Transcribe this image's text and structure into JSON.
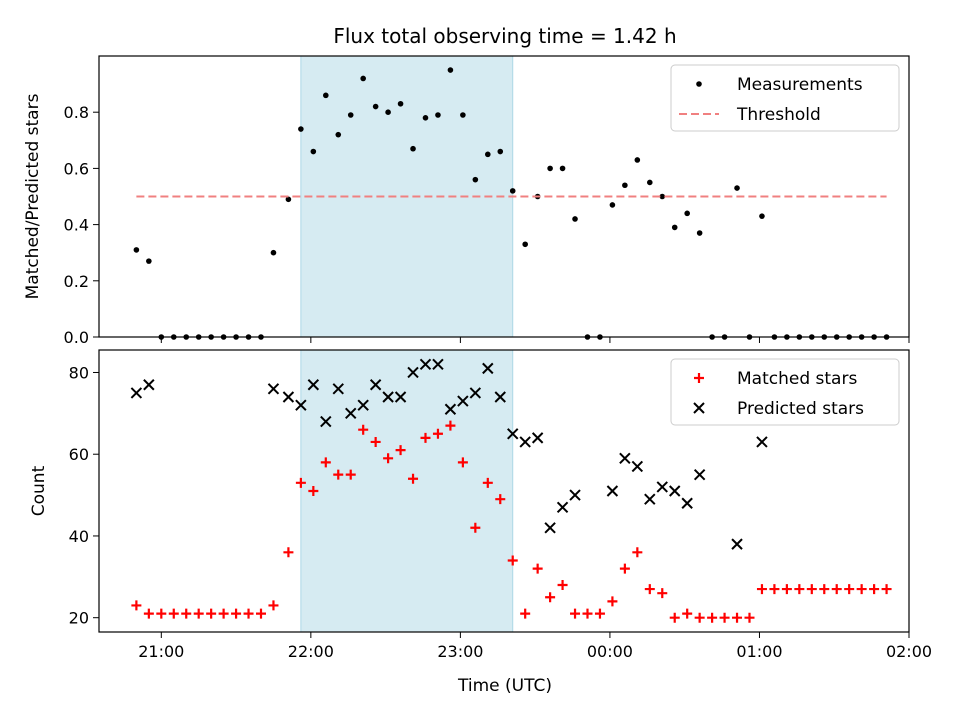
{
  "figure": {
    "title": "Flux total observing time = 1.42 h",
    "xlabel": "Time (UTC)",
    "x_ticks": [
      "21:00",
      "22:00",
      "23:00",
      "00:00",
      "01:00",
      "02:00"
    ]
  },
  "chart_data": [
    {
      "type": "scatter",
      "ylabel": "Matched/Predicted stars",
      "xlim": [
        "20:35",
        "02:00"
      ],
      "ylim": [
        0,
        1.0
      ],
      "y_ticks": [
        "0.0",
        "0.2",
        "0.4",
        "0.6",
        "0.8"
      ],
      "shaded_interval": [
        "21:56",
        "23:21"
      ],
      "legend_position": "upper-right",
      "series": [
        {
          "name": "Measurements",
          "marker": "dot",
          "color": "#000000",
          "points": [
            [
              "20:50",
              0.31
            ],
            [
              "20:55",
              0.27
            ],
            [
              "21:00",
              0.0
            ],
            [
              "21:05",
              0.0
            ],
            [
              "21:10",
              0.0
            ],
            [
              "21:15",
              0.0
            ],
            [
              "21:20",
              0.0
            ],
            [
              "21:25",
              0.0
            ],
            [
              "21:30",
              0.0
            ],
            [
              "21:35",
              0.0
            ],
            [
              "21:40",
              0.0
            ],
            [
              "21:45",
              0.3
            ],
            [
              "21:51",
              0.49
            ],
            [
              "21:56",
              0.74
            ],
            [
              "22:01",
              0.66
            ],
            [
              "22:06",
              0.86
            ],
            [
              "22:11",
              0.72
            ],
            [
              "22:16",
              0.79
            ],
            [
              "22:21",
              0.92
            ],
            [
              "22:26",
              0.82
            ],
            [
              "22:31",
              0.8
            ],
            [
              "22:36",
              0.83
            ],
            [
              "22:41",
              0.67
            ],
            [
              "22:46",
              0.78
            ],
            [
              "22:51",
              0.79
            ],
            [
              "22:56",
              0.95
            ],
            [
              "23:01",
              0.79
            ],
            [
              "23:06",
              0.56
            ],
            [
              "23:11",
              0.65
            ],
            [
              "23:16",
              0.66
            ],
            [
              "23:21",
              0.52
            ],
            [
              "23:26",
              0.33
            ],
            [
              "23:31",
              0.5
            ],
            [
              "23:36",
              0.6
            ],
            [
              "23:41",
              0.6
            ],
            [
              "23:46",
              0.42
            ],
            [
              "23:51",
              0.0
            ],
            [
              "23:56",
              0.0
            ],
            [
              "00:01",
              0.47
            ],
            [
              "00:06",
              0.54
            ],
            [
              "00:11",
              0.63
            ],
            [
              "00:16",
              0.55
            ],
            [
              "00:21",
              0.5
            ],
            [
              "00:26",
              0.39
            ],
            [
              "00:31",
              0.44
            ],
            [
              "00:36",
              0.37
            ],
            [
              "00:41",
              0.0
            ],
            [
              "00:46",
              0.0
            ],
            [
              "00:51",
              0.53
            ],
            [
              "00:56",
              0.0
            ],
            [
              "01:01",
              0.43
            ],
            [
              "01:06",
              0.0
            ],
            [
              "01:11",
              0.0
            ],
            [
              "01:16",
              0.0
            ],
            [
              "01:21",
              0.0
            ],
            [
              "01:26",
              0.0
            ],
            [
              "01:31",
              0.0
            ],
            [
              "01:36",
              0.0
            ],
            [
              "01:41",
              0.0
            ],
            [
              "01:46",
              0.0
            ],
            [
              "01:51",
              0.0
            ]
          ]
        },
        {
          "name": "Threshold",
          "style": "dashed",
          "color": "#f08080",
          "points": [
            [
              "20:50",
              0.5
            ],
            [
              "01:51",
              0.5
            ]
          ]
        }
      ]
    },
    {
      "type": "scatter",
      "ylabel": "Count",
      "xlim": [
        "20:35",
        "02:00"
      ],
      "ylim": [
        16.5,
        85.5
      ],
      "y_ticks": [
        "20",
        "40",
        "60",
        "80"
      ],
      "shaded_interval": [
        "21:56",
        "23:21"
      ],
      "legend_position": "upper-right",
      "series": [
        {
          "name": "Matched stars",
          "marker": "plus",
          "color": "#ff0000",
          "points": [
            [
              "20:50",
              23
            ],
            [
              "20:55",
              21
            ],
            [
              "21:00",
              21
            ],
            [
              "21:05",
              21
            ],
            [
              "21:10",
              21
            ],
            [
              "21:15",
              21
            ],
            [
              "21:20",
              21
            ],
            [
              "21:25",
              21
            ],
            [
              "21:30",
              21
            ],
            [
              "21:35",
              21
            ],
            [
              "21:40",
              21
            ],
            [
              "21:45",
              23
            ],
            [
              "21:51",
              36
            ],
            [
              "21:56",
              53
            ],
            [
              "22:01",
              51
            ],
            [
              "22:06",
              58
            ],
            [
              "22:11",
              55
            ],
            [
              "22:16",
              55
            ],
            [
              "22:21",
              66
            ],
            [
              "22:26",
              63
            ],
            [
              "22:31",
              59
            ],
            [
              "22:36",
              61
            ],
            [
              "22:41",
              54
            ],
            [
              "22:46",
              64
            ],
            [
              "22:51",
              65
            ],
            [
              "22:56",
              67
            ],
            [
              "23:01",
              58
            ],
            [
              "23:06",
              42
            ],
            [
              "23:11",
              53
            ],
            [
              "23:16",
              49
            ],
            [
              "23:21",
              34
            ],
            [
              "23:26",
              21
            ],
            [
              "23:31",
              32
            ],
            [
              "23:36",
              25
            ],
            [
              "23:41",
              28
            ],
            [
              "23:46",
              21
            ],
            [
              "23:51",
              21
            ],
            [
              "23:56",
              21
            ],
            [
              "00:01",
              24
            ],
            [
              "00:06",
              32
            ],
            [
              "00:11",
              36
            ],
            [
              "00:16",
              27
            ],
            [
              "00:21",
              26
            ],
            [
              "00:26",
              20
            ],
            [
              "00:31",
              21
            ],
            [
              "00:36",
              20
            ],
            [
              "00:41",
              20
            ],
            [
              "00:46",
              20
            ],
            [
              "00:51",
              20
            ],
            [
              "00:56",
              20
            ],
            [
              "01:01",
              27
            ],
            [
              "01:06",
              27
            ],
            [
              "01:11",
              27
            ],
            [
              "01:16",
              27
            ],
            [
              "01:21",
              27
            ],
            [
              "01:26",
              27
            ],
            [
              "01:31",
              27
            ],
            [
              "01:36",
              27
            ],
            [
              "01:41",
              27
            ],
            [
              "01:46",
              27
            ],
            [
              "01:51",
              27
            ]
          ]
        },
        {
          "name": "Predicted stars",
          "marker": "x",
          "color": "#000000",
          "points": [
            [
              "20:50",
              75
            ],
            [
              "20:55",
              77
            ],
            [
              "21:45",
              76
            ],
            [
              "21:51",
              74
            ],
            [
              "21:56",
              72
            ],
            [
              "22:01",
              77
            ],
            [
              "22:06",
              68
            ],
            [
              "22:11",
              76
            ],
            [
              "22:16",
              70
            ],
            [
              "22:21",
              72
            ],
            [
              "22:26",
              77
            ],
            [
              "22:31",
              74
            ],
            [
              "22:36",
              74
            ],
            [
              "22:41",
              80
            ],
            [
              "22:46",
              82
            ],
            [
              "22:51",
              82
            ],
            [
              "22:56",
              71
            ],
            [
              "23:01",
              73
            ],
            [
              "23:06",
              75
            ],
            [
              "23:11",
              81
            ],
            [
              "23:16",
              74
            ],
            [
              "23:21",
              65
            ],
            [
              "23:26",
              63
            ],
            [
              "23:31",
              64
            ],
            [
              "23:36",
              42
            ],
            [
              "23:41",
              47
            ],
            [
              "23:46",
              50
            ],
            [
              "00:01",
              51
            ],
            [
              "00:06",
              59
            ],
            [
              "00:11",
              57
            ],
            [
              "00:16",
              49
            ],
            [
              "00:21",
              52
            ],
            [
              "00:26",
              51
            ],
            [
              "00:31",
              48
            ],
            [
              "00:36",
              55
            ],
            [
              "00:51",
              38
            ],
            [
              "01:01",
              63
            ]
          ]
        }
      ]
    }
  ]
}
